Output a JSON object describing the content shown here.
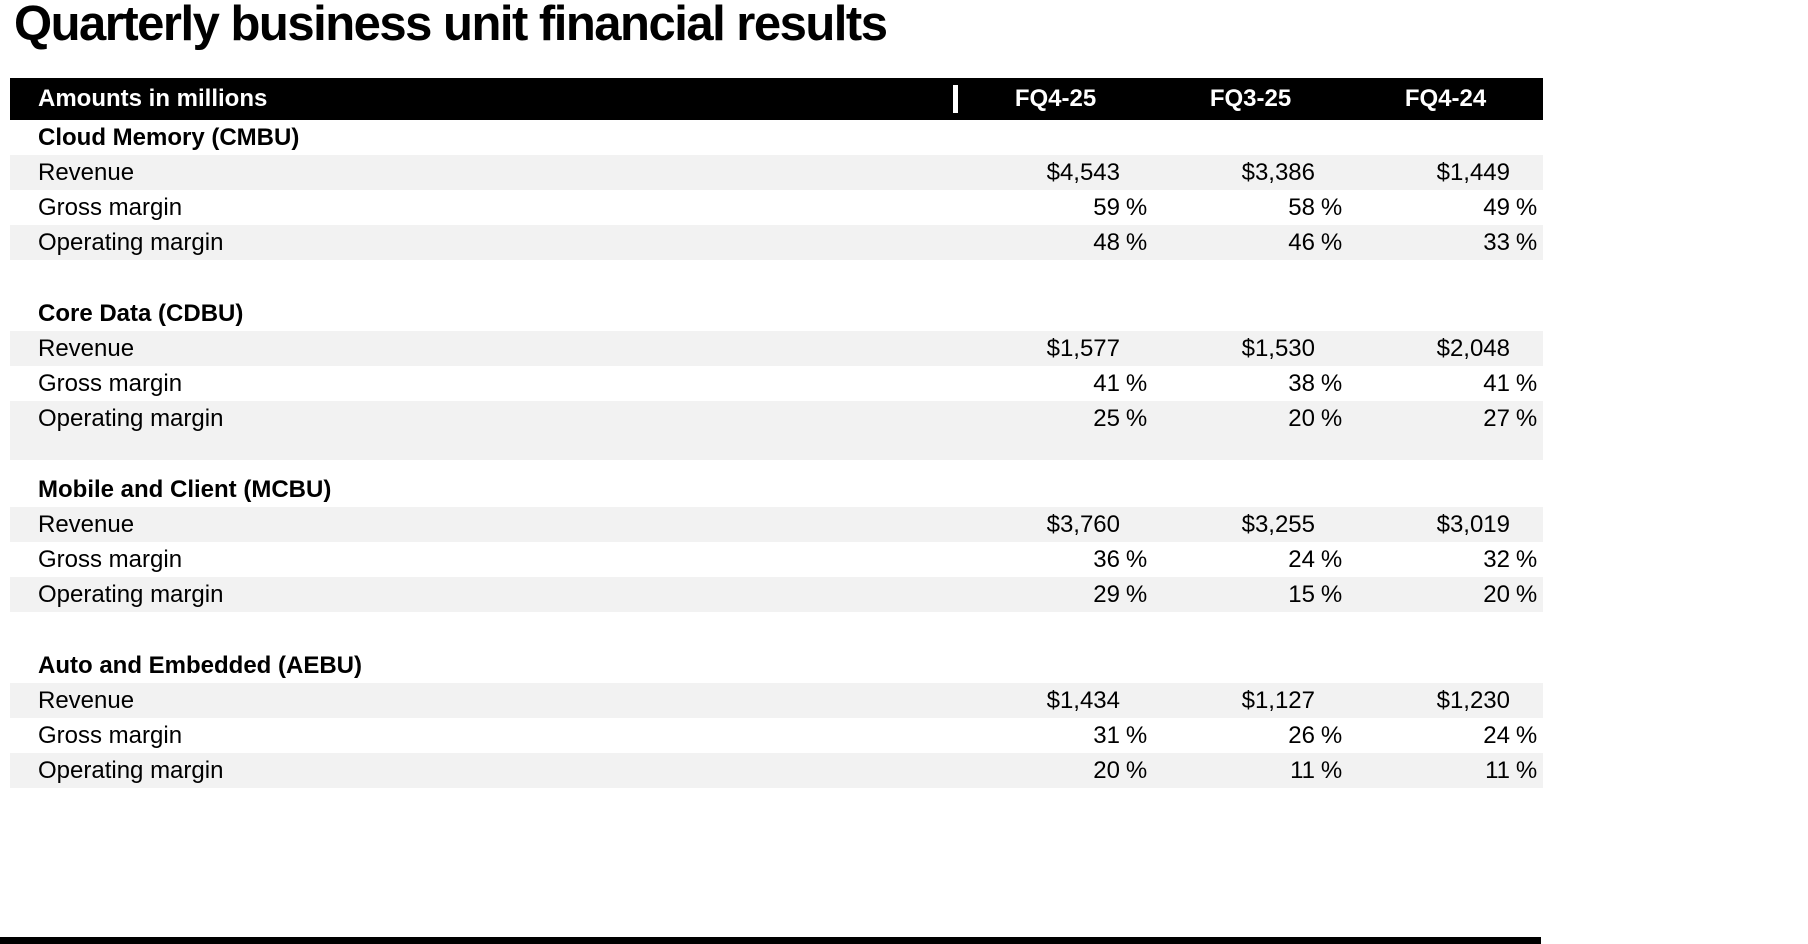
{
  "page": {
    "title": "Quarterly business unit financial results"
  },
  "table": {
    "header": {
      "label": "Amounts in millions",
      "columns": [
        "FQ4-25",
        "FQ3-25",
        "FQ4-24"
      ]
    },
    "sections": [
      {
        "name": "Cloud Memory (CMBU)",
        "rows": [
          {
            "label": "Revenue",
            "values": [
              "$4,543",
              "$3,386",
              "$1,449"
            ],
            "unit": ""
          },
          {
            "label": "Gross margin",
            "values": [
              "59",
              "58",
              "49"
            ],
            "unit": "%"
          },
          {
            "label": "Operating margin",
            "values": [
              "48",
              "46",
              "33"
            ],
            "unit": "%"
          }
        ]
      },
      {
        "name": "Core Data (CDBU)",
        "rows": [
          {
            "label": "Revenue",
            "values": [
              "$1,577",
              "$1,530",
              "$2,048"
            ],
            "unit": ""
          },
          {
            "label": "Gross margin",
            "values": [
              "41",
              "38",
              "41"
            ],
            "unit": "%"
          },
          {
            "label": "Operating margin",
            "values": [
              "25",
              "20",
              "27"
            ],
            "unit": "%"
          }
        ]
      },
      {
        "name": "Mobile and Client (MCBU)",
        "rows": [
          {
            "label": "Revenue",
            "values": [
              "$3,760",
              "$3,255",
              "$3,019"
            ],
            "unit": ""
          },
          {
            "label": "Gross margin",
            "values": [
              "36",
              "24",
              "32"
            ],
            "unit": "%"
          },
          {
            "label": "Operating margin",
            "values": [
              "29",
              "15",
              "20"
            ],
            "unit": "%"
          }
        ]
      },
      {
        "name": "Auto and Embedded (AEBU)",
        "rows": [
          {
            "label": "Revenue",
            "values": [
              "$1,434",
              "$1,127",
              "$1,230"
            ],
            "unit": ""
          },
          {
            "label": "Gross margin",
            "values": [
              "31",
              "26",
              "24"
            ],
            "unit": "%"
          },
          {
            "label": "Operating margin",
            "values": [
              "20",
              "11",
              "11"
            ],
            "unit": "%"
          }
        ]
      }
    ]
  },
  "colors": {
    "header_bg": "#000000",
    "header_text": "#ffffff",
    "stripe": "#f2f2f2"
  }
}
